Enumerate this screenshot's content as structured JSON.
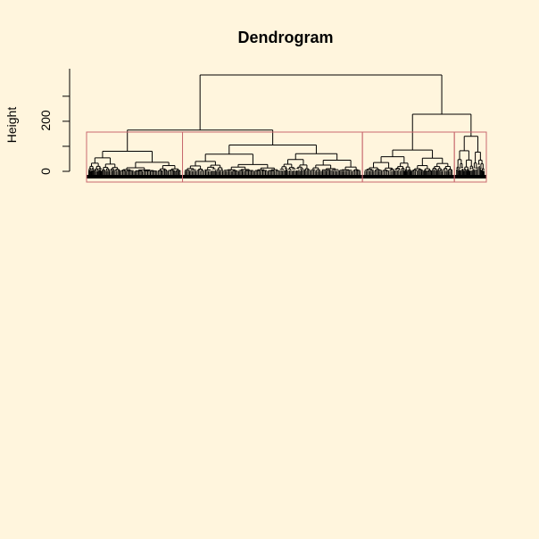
{
  "chart_data": {
    "type": "dendrogram",
    "title": "Dendrogram",
    "ylabel": "Height",
    "yticks": [
      0,
      200
    ],
    "ylim": [
      0,
      385
    ],
    "grid": false,
    "cluster_boxes": 4,
    "cluster_box_color": "#c8696e",
    "line_color": "#000000",
    "background": "#fff5dd",
    "root_height": 385,
    "clusters": [
      {
        "leaf_share": 0.24,
        "merge_height": 80
      },
      {
        "leaf_share": 0.45,
        "merge_height": 105
      },
      {
        "leaf_share": 0.23,
        "merge_height": 85
      },
      {
        "leaf_share": 0.08,
        "merge_height": 140
      }
    ],
    "upper_merges": [
      {
        "children": [
          0,
          1
        ],
        "height": 165
      },
      {
        "children": [
          2,
          3
        ],
        "height": 228
      },
      {
        "children": [
          "0+1",
          "2+3"
        ],
        "height": 385
      }
    ]
  }
}
